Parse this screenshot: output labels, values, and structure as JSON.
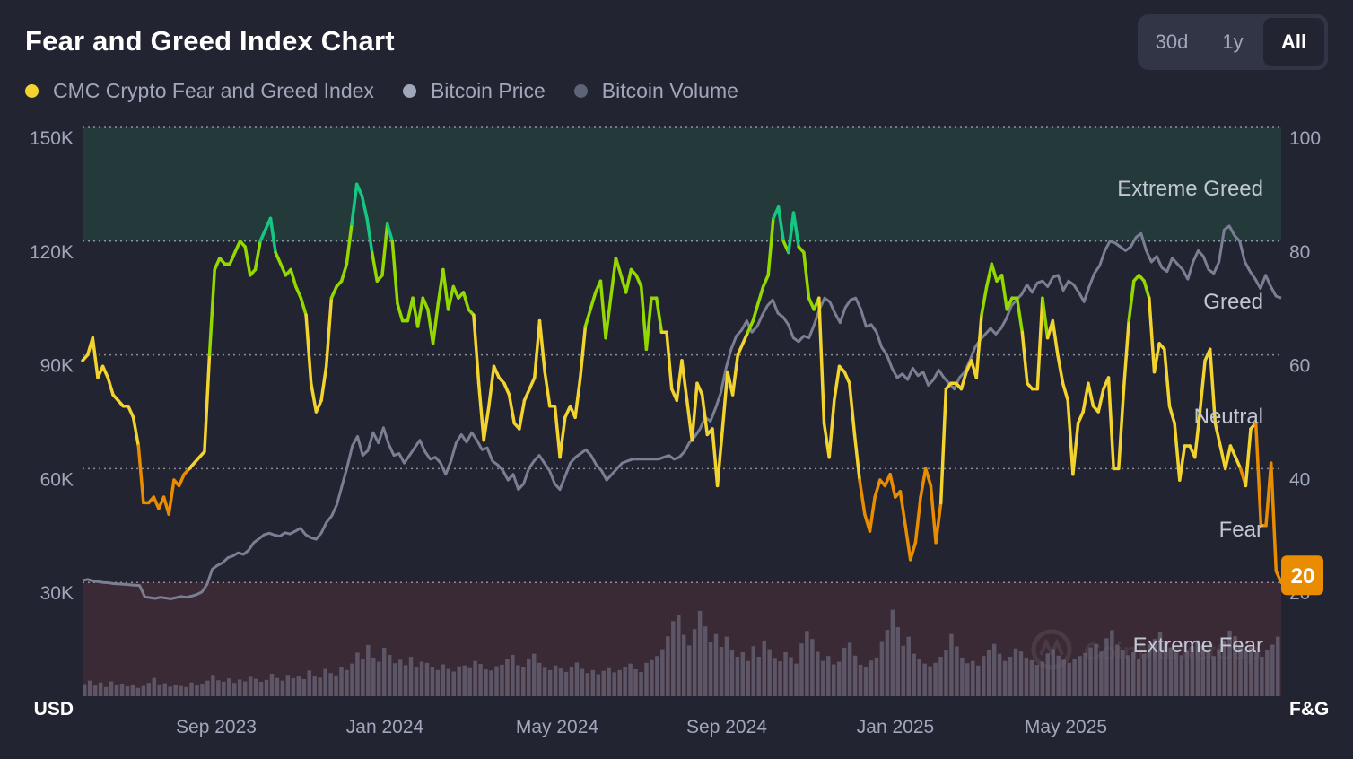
{
  "header": {
    "title": "Fear and Greed Index Chart",
    "ranges": [
      "30d",
      "1y",
      "All"
    ],
    "active_range": "All"
  },
  "colors": {
    "background": "#222531",
    "fg_index": "#f3d42f",
    "bitcoin_price": "#a1a7bb",
    "bitcoin_volume": "#5f6378",
    "extreme_greed_zone": "#243a3a",
    "extreme_fear_zone": "#3a2a35",
    "badge": "#ea8c00",
    "extreme_greed_line": "#16c784",
    "greed_line": "#93d900",
    "neutral_line": "#f3d42f",
    "fear_line": "#ea8c00",
    "extreme_fear_line": "#ea3943"
  },
  "watermark": "CoinMarketCap",
  "chart_data": {
    "type": "line",
    "title": "Fear and Greed Index Chart",
    "legend": [
      {
        "name": "CMC Crypto Fear and Greed Index",
        "color": "#f3d42f"
      },
      {
        "name": "Bitcoin Price",
        "color": "#a1a7bb"
      },
      {
        "name": "Bitcoin Volume",
        "color": "#5f6378"
      }
    ],
    "legend_position": "top-left",
    "left_axis": {
      "unit": "USD",
      "ticks": [
        "150K",
        "120K",
        "90K",
        "60K",
        "30K"
      ],
      "range": [
        0,
        150000
      ]
    },
    "right_axis": {
      "unit": "F&G",
      "ticks": [
        "100",
        "80",
        "60",
        "40",
        "20"
      ],
      "range": [
        0,
        100
      ]
    },
    "x_ticks": [
      "Sep 2023",
      "Jan 2024",
      "May 2024",
      "Sep 2024",
      "Jan 2025",
      "May 2025"
    ],
    "x_range": [
      "Jun 2023",
      "Oct 2025"
    ],
    "zones": [
      {
        "label": "Extreme Greed",
        "from": 80,
        "to": 100
      },
      {
        "label": "Greed",
        "from": 60,
        "to": 80
      },
      {
        "label": "Neutral",
        "from": 40,
        "to": 60
      },
      {
        "label": "Fear",
        "from": 20,
        "to": 40
      },
      {
        "label": "Extreme Fear",
        "from": 0,
        "to": 20
      }
    ],
    "current_value": "20",
    "series": [
      {
        "name": "CMC Crypto Fear and Greed Index",
        "axis": "right",
        "values": [
          59,
          60,
          63,
          56,
          58,
          56,
          53,
          52,
          51,
          51,
          49,
          44,
          34,
          34,
          35,
          33,
          35,
          32,
          38,
          37,
          39,
          40,
          41,
          42,
          43,
          60,
          75,
          77,
          76,
          76,
          78,
          80,
          79,
          74,
          75,
          80,
          82,
          84,
          78,
          76,
          74,
          75,
          72,
          70,
          67,
          55,
          50,
          52,
          58,
          70,
          72,
          73,
          76,
          83,
          90,
          88,
          84,
          78,
          73,
          74,
          83,
          80,
          69,
          66,
          66,
          70,
          65,
          70,
          68,
          62,
          69,
          75,
          68,
          72,
          70,
          71,
          68,
          67,
          55,
          45,
          51,
          58,
          56,
          55,
          53,
          48,
          47,
          52,
          54,
          56,
          66,
          57,
          51,
          51,
          42,
          49,
          51,
          49,
          56,
          65,
          68,
          71,
          73,
          63,
          70,
          77,
          74,
          71,
          75,
          74,
          72,
          61,
          70,
          70,
          64,
          64,
          54,
          52,
          59,
          52,
          45,
          55,
          53,
          46,
          47,
          37,
          47,
          57,
          53,
          60,
          62,
          64,
          66,
          69,
          72,
          74,
          84,
          86,
          80,
          78,
          85,
          79,
          78,
          70,
          68,
          70,
          48,
          42,
          52,
          58,
          57,
          55,
          46,
          38,
          32,
          29,
          35,
          38,
          37,
          39,
          35,
          36,
          30,
          24,
          27,
          35,
          40,
          37,
          27,
          34,
          54,
          55,
          55,
          54,
          57,
          59,
          56,
          67,
          72,
          76,
          73,
          74,
          68,
          70,
          70,
          64,
          55,
          54,
          54,
          70,
          63,
          66,
          60,
          55,
          52,
          39,
          48,
          50,
          55,
          51,
          50,
          54,
          56,
          40,
          40,
          54,
          66,
          73,
          74,
          73,
          70,
          57,
          62,
          61,
          51,
          48,
          38,
          44,
          44,
          42,
          50,
          59,
          61,
          48,
          44,
          40,
          44,
          42,
          40,
          37,
          47,
          48,
          30,
          30,
          41,
          22,
          20
        ],
        "color_by_zone": true
      },
      {
        "name": "Bitcoin Price",
        "axis": "left",
        "values": [
          30500,
          30800,
          30400,
          30200,
          30000,
          29900,
          29700,
          29600,
          29500,
          29400,
          29300,
          29200,
          26200,
          26000,
          25800,
          26100,
          25900,
          25700,
          26000,
          26300,
          26100,
          26400,
          26800,
          27500,
          29500,
          33500,
          34500,
          35200,
          36500,
          37000,
          37800,
          37400,
          38500,
          40500,
          41500,
          42600,
          43000,
          42500,
          42200,
          43100,
          42800,
          43500,
          44300,
          42600,
          41800,
          41400,
          43000,
          45800,
          47500,
          50500,
          55500,
          60500,
          66000,
          68500,
          63500,
          64800,
          69500,
          66800,
          70800,
          66500,
          63500,
          64000,
          61500,
          63500,
          65500,
          67500,
          64500,
          62500,
          63000,
          61500,
          58500,
          62000,
          66800,
          69000,
          67000,
          69500,
          67500,
          65000,
          65500,
          62000,
          61000,
          59500,
          57000,
          58500,
          54500,
          56000,
          60000,
          62000,
          63500,
          61500,
          59500,
          56000,
          54500,
          58000,
          61500,
          63000,
          64000,
          65000,
          63500,
          61000,
          59500,
          57000,
          58500,
          60000,
          61500,
          62000,
          62500,
          62500,
          62500,
          62500,
          62500,
          62500,
          63000,
          63500,
          62500,
          63000,
          64500,
          67000,
          68500,
          70500,
          73500,
          72500,
          76000,
          80000,
          86500,
          91500,
          95000,
          96500,
          99000,
          96000,
          97500,
          100500,
          103000,
          104500,
          101000,
          100000,
          98000,
          94500,
          93500,
          95000,
          94500,
          98000,
          102000,
          105000,
          104000,
          101000,
          98500,
          102500,
          104500,
          105000,
          102000,
          97500,
          98000,
          96000,
          92000,
          90000,
          86500,
          84000,
          85000,
          83500,
          86500,
          84500,
          85500,
          82000,
          83500,
          86000,
          84000,
          82500,
          81000,
          84000,
          85500,
          88500,
          92000,
          94000,
          95500,
          97000,
          95500,
          97000,
          99500,
          103000,
          104500,
          106000,
          108500,
          106500,
          109000,
          109500,
          108000,
          110500,
          111000,
          107000,
          109500,
          108500,
          106500,
          104000,
          108000,
          111500,
          113500,
          117500,
          120000,
          119500,
          118500,
          117500,
          118500,
          121000,
          122000,
          117500,
          114500,
          116000,
          113000,
          112000,
          115500,
          114000,
          112500,
          110000,
          114500,
          117500,
          116000,
          112500,
          111500,
          114500,
          123000,
          124000,
          121500,
          120000,
          114500,
          112000,
          110000,
          107500,
          111000,
          108000,
          105500,
          105000
        ]
      },
      {
        "name": "Bitcoin Volume",
        "axis": "left",
        "values": [
          3200,
          4100,
          2800,
          3600,
          2400,
          3900,
          2900,
          3300,
          2600,
          3100,
          2200,
          2700,
          3500,
          4800,
          2900,
          3400,
          2500,
          3000,
          2700,
          2400,
          3600,
          2900,
          3300,
          4100,
          5600,
          4200,
          3800,
          4700,
          3500,
          4400,
          3900,
          5100,
          4600,
          3800,
          4300,
          5900,
          4800,
          4100,
          5600,
          4700,
          5200,
          4500,
          6800,
          5400,
          4900,
          7200,
          6100,
          5500,
          7800,
          6900,
          8600,
          11500,
          9800,
          13500,
          10200,
          9100,
          12800,
          10900,
          8700,
          9600,
          8200,
          10400,
          7700,
          9100,
          8800,
          7600,
          6900,
          8400,
          7200,
          6500,
          7900,
          8100,
          7400,
          9300,
          8500,
          7100,
          6800,
          7900,
          8300,
          9800,
          10900,
          8200,
          7600,
          9900,
          11200,
          8800,
          7500,
          6900,
          8100,
          7300,
          6400,
          7800,
          8900,
          7200,
          6100,
          6900,
          5800,
          6700,
          7400,
          6300,
          6900,
          7800,
          8600,
          7100,
          6400,
          8800,
          9500,
          10600,
          12400,
          15800,
          19800,
          21500,
          16200,
          13400,
          17700,
          22500,
          18400,
          14200,
          16400,
          13000,
          15700,
          12100,
          10400,
          11600,
          9300,
          13200,
          10400,
          14700,
          12400,
          10100,
          9200,
          11600,
          10300,
          8600,
          13900,
          17200,
          15100,
          11700,
          9300,
          10600,
          8400,
          9100,
          12800,
          14100,
          10700,
          8300,
          7600,
          9400,
          10200,
          14300,
          17500,
          22800,
          18200,
          13300,
          15700,
          11200,
          9800,
          8600,
          7900,
          8800,
          10400,
          12300,
          16400,
          13100,
          10200,
          8700,
          9300,
          8100,
          10600,
          12300,
          13800,
          11200,
          9300,
          10400,
          12600,
          11800,
          10200,
          9500,
          8300,
          9100,
          11300,
          12400,
          10700,
          9600,
          8800,
          9700,
          10600,
          11400,
          12900,
          13700,
          11800,
          15300,
          17400,
          13600,
          12100,
          10800,
          11600,
          9900,
          11200,
          13700,
          15100,
          16800,
          14300,
          12900,
          11500,
          10800,
          11900,
          13200,
          14800,
          13400,
          11900,
          10600,
          12400,
          14700,
          17300,
          15800,
          13300,
          11800,
          12900,
          11600,
          10400,
          12200,
          13600,
          15700
        ]
      }
    ]
  }
}
